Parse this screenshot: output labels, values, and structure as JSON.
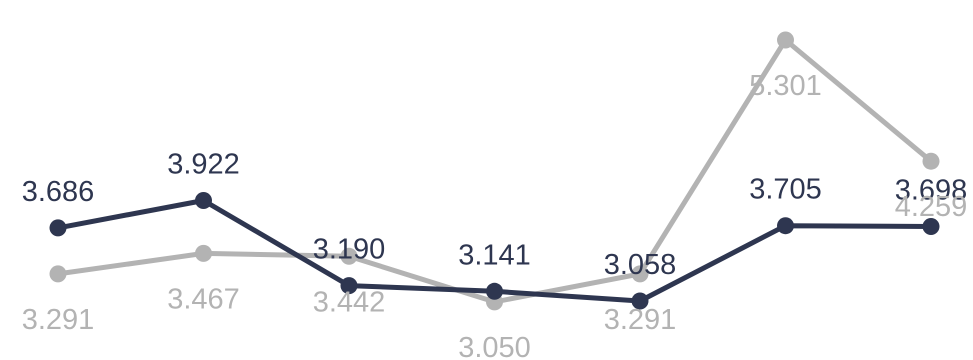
{
  "chart_data": {
    "type": "line",
    "title": "",
    "xlabel": "",
    "ylabel": "",
    "categories": [
      "",
      "",
      "",
      "",
      "",
      "",
      ""
    ],
    "ylim": [
      2.6,
      5.6
    ],
    "grid": false,
    "legend": "none",
    "series": [
      {
        "color": "#2e3650",
        "values": [
          3.686,
          3.922,
          3.19,
          3.141,
          3.058,
          3.705,
          3.698
        ],
        "labels": [
          "3.686",
          "3.922",
          "3.190",
          "3.141",
          "3.058",
          "3.705",
          "3.698"
        ],
        "label_position": "above"
      },
      {
        "color": "#b3b3b3",
        "values": [
          3.291,
          3.467,
          3.442,
          3.05,
          3.291,
          5.301,
          4.259
        ],
        "labels": [
          "3.291",
          "3.467",
          "3.442",
          "3.050",
          "3.291",
          "5.301",
          "4.259"
        ],
        "label_position": "below"
      }
    ]
  }
}
